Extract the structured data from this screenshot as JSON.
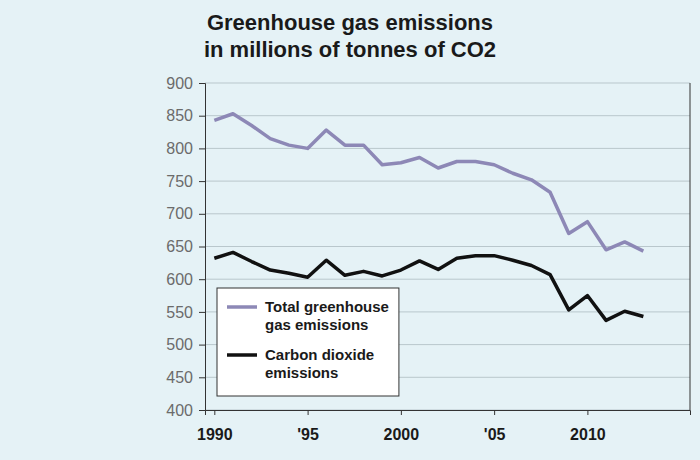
{
  "chart_data": {
    "type": "line",
    "title": "Greenhouse gas emissions",
    "subtitle": "in millions of tonnes of CO2",
    "x": [
      1990,
      1991,
      1992,
      1993,
      1994,
      1995,
      1996,
      1997,
      1998,
      1999,
      2000,
      2001,
      2002,
      2003,
      2004,
      2005,
      2006,
      2007,
      2008,
      2009,
      2010,
      2011,
      2012,
      2013
    ],
    "series": [
      {
        "name": "Total greenhouse gas emissions",
        "color": "#8d88b6",
        "values": [
          843,
          853,
          835,
          815,
          805,
          800,
          828,
          805,
          805,
          775,
          778,
          786,
          770,
          780,
          780,
          775,
          762,
          752,
          733,
          670,
          688,
          645,
          657,
          643
        ]
      },
      {
        "name": "Carbon dioxide emissions",
        "color": "#111111",
        "values": [
          632,
          641,
          627,
          614,
          609,
          603,
          629,
          606,
          612,
          605,
          614,
          628,
          615,
          632,
          636,
          636,
          629,
          621,
          607,
          553,
          575,
          537,
          551,
          543
        ]
      }
    ],
    "xlim": [
      1989.5,
      2015.5
    ],
    "xticks": [
      {
        "value": 1990,
        "label": "1990"
      },
      {
        "value": 1995,
        "label": "'95"
      },
      {
        "value": 2000,
        "label": "2000"
      },
      {
        "value": 2005,
        "label": "'05"
      },
      {
        "value": 2010,
        "label": "2010"
      }
    ],
    "ylim": [
      400,
      900
    ],
    "yticks": [
      400,
      450,
      500,
      550,
      600,
      650,
      700,
      750,
      800,
      850,
      900
    ],
    "grid": true,
    "legend": "bottom-left"
  }
}
